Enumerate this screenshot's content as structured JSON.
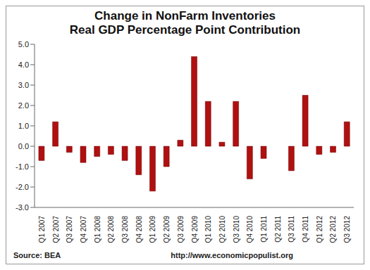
{
  "chart_data": {
    "type": "bar",
    "title": "Change in NonFarm Inventories",
    "subtitle": "Real GDP Percentage Point Contribution",
    "categories": [
      "Q1 2007",
      "Q2 2007",
      "Q3 2007",
      "Q4 2007",
      "Q1 2008",
      "Q2 2008",
      "Q3 2008",
      "Q4 2008",
      "Q1 2009",
      "Q2 2009",
      "Q3 2009",
      "Q4 2009",
      "Q1 2010",
      "Q2 2010",
      "Q3 2010",
      "Q4 2010",
      "Q1 2011",
      "Q2 2011",
      "Q3 2011",
      "Q4 2011",
      "Q1 2012",
      "Q2 2012",
      "Q3 2012"
    ],
    "values": [
      -0.7,
      1.2,
      -0.3,
      -0.8,
      -0.5,
      -0.4,
      -0.7,
      -1.4,
      -2.2,
      -1.0,
      0.3,
      4.4,
      2.2,
      0.2,
      2.2,
      -1.6,
      -0.6,
      0.0,
      -1.2,
      2.5,
      -0.4,
      -0.3,
      1.2
    ],
    "color": "#b01010",
    "ylim": [
      -3,
      5
    ],
    "yticks": [
      {
        "value": -3,
        "label": "-3.0"
      },
      {
        "value": -2,
        "label": "-2.0"
      },
      {
        "value": -1,
        "label": "-1.0"
      },
      {
        "value": 0,
        "label": "0.0"
      },
      {
        "value": 1,
        "label": "1.0"
      },
      {
        "value": 2,
        "label": "2.0"
      },
      {
        "value": 3,
        "label": "3.0"
      },
      {
        "value": 4,
        "label": "4.0"
      },
      {
        "value": 5,
        "label": "5.0"
      }
    ],
    "grid": false,
    "annotations": [
      "Source: BEA",
      "http://www.economicpopulist.org"
    ]
  }
}
